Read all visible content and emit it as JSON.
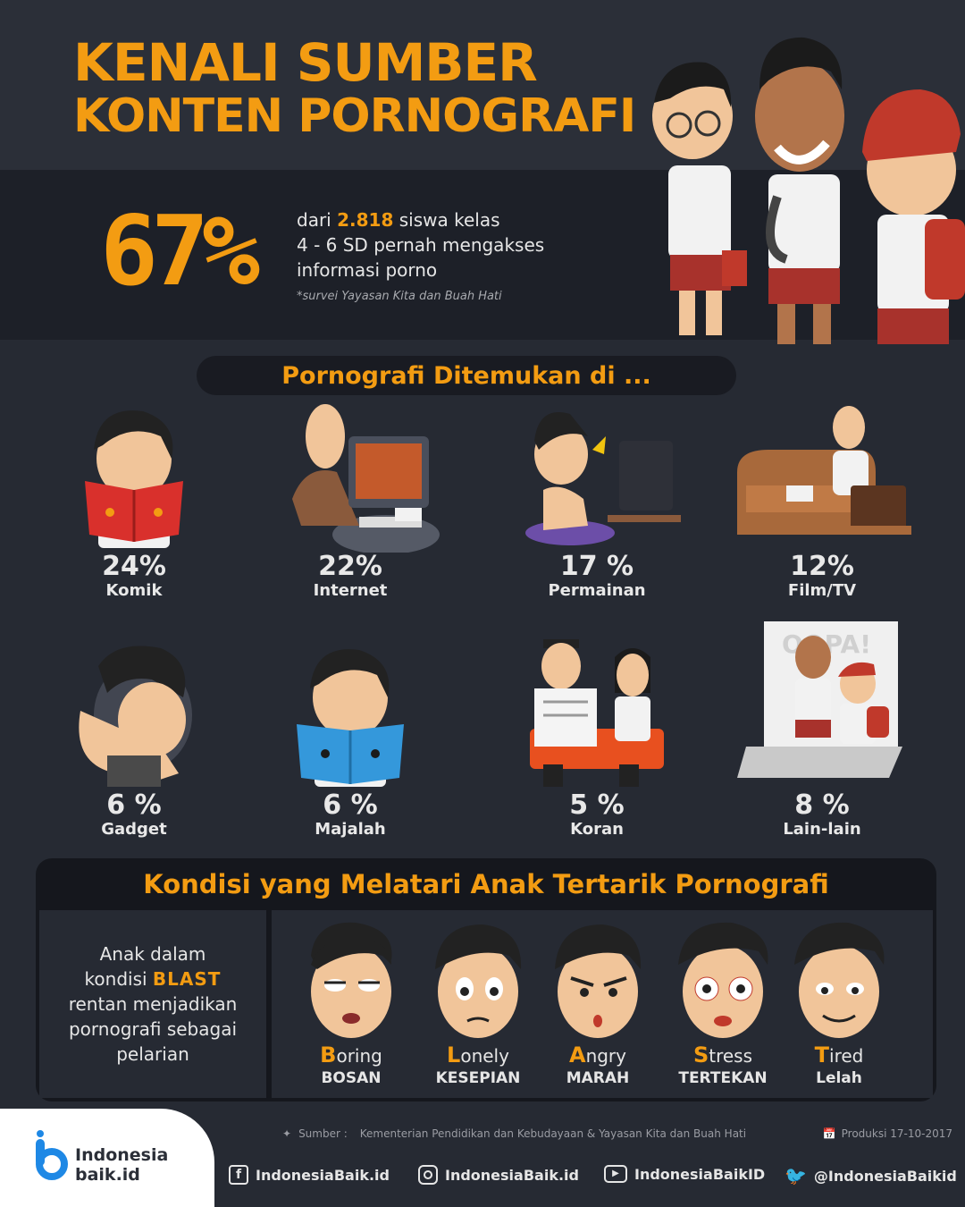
{
  "header": {
    "title_line1": "KENALI SUMBER",
    "title_line2": "KONTEN PORNOGRAFI"
  },
  "stat": {
    "percent": "67%",
    "text_pre": "dari",
    "number": "2.818",
    "text_post1": "siswa kelas",
    "line2": "4 - 6  SD pernah mengakses",
    "line3": "informasi porno",
    "note": "*survei Yayasan Kita dan Buah Hati"
  },
  "section1": {
    "title": "Pornografi Ditemukan di ..."
  },
  "sources": [
    {
      "percent": "24%",
      "label": "Komik",
      "value": 24,
      "icon": "comic-reader-icon"
    },
    {
      "percent": "22%",
      "label": "Internet",
      "value": 22,
      "icon": "computer-user-icon"
    },
    {
      "percent": "17 %",
      "label": "Permainan",
      "value": 17,
      "icon": "gamer-icon"
    },
    {
      "percent": "12%",
      "label": "Film/TV",
      "value": 12,
      "icon": "tv-watcher-icon"
    },
    {
      "percent": "6 %",
      "label": "Gadget",
      "value": 6,
      "icon": "phone-user-icon"
    },
    {
      "percent": "6 %",
      "label": "Majalah",
      "value": 6,
      "icon": "magazine-reader-icon"
    },
    {
      "percent": "5 %",
      "label": "Koran",
      "value": 5,
      "icon": "newspaper-reader-icon"
    },
    {
      "percent": "8 %",
      "label": "Lain-lain",
      "value": 8,
      "icon": "other-sources-icon"
    }
  ],
  "section2": {
    "title": "Kondisi yang Melatari Anak Tertarik Pornografi",
    "left_line1": "Anak dalam",
    "left_line2_pre": "kondisi",
    "left_acronym": "BLAST",
    "left_line3": "rentan menjadikan",
    "left_line4": "pornografi sebagai",
    "left_line5": "pelarian",
    "poster_text": "OOPA!",
    "conditions": [
      {
        "cap": "B",
        "rest": "oring",
        "ind": "BOSAN"
      },
      {
        "cap": "L",
        "rest": "onely",
        "ind": "KESEPIAN"
      },
      {
        "cap": "A",
        "rest": "ngry",
        "ind": "MARAH"
      },
      {
        "cap": "S",
        "rest": "tress",
        "ind": "TERTEKAN"
      },
      {
        "cap": "T",
        "rest": "ired",
        "ind": "Lelah"
      }
    ]
  },
  "footer": {
    "source_label": "Sumber :",
    "source_text": "Kementerian Pendidikan dan Kebudayaan &  Yayasan Kita dan Buah Hati",
    "production": "Produksi 17-10-2017",
    "logo_line1": "Indonesia",
    "logo_line2": "baik.id",
    "facebook": "IndonesiaBaik.id",
    "instagram": "IndonesiaBaik.id",
    "youtube": "IndonesiaBaikID",
    "twitter": "@IndonesiaBaikid"
  },
  "colors": {
    "accent": "#f39c12",
    "background": "#262a33",
    "panel": "#15171d"
  }
}
